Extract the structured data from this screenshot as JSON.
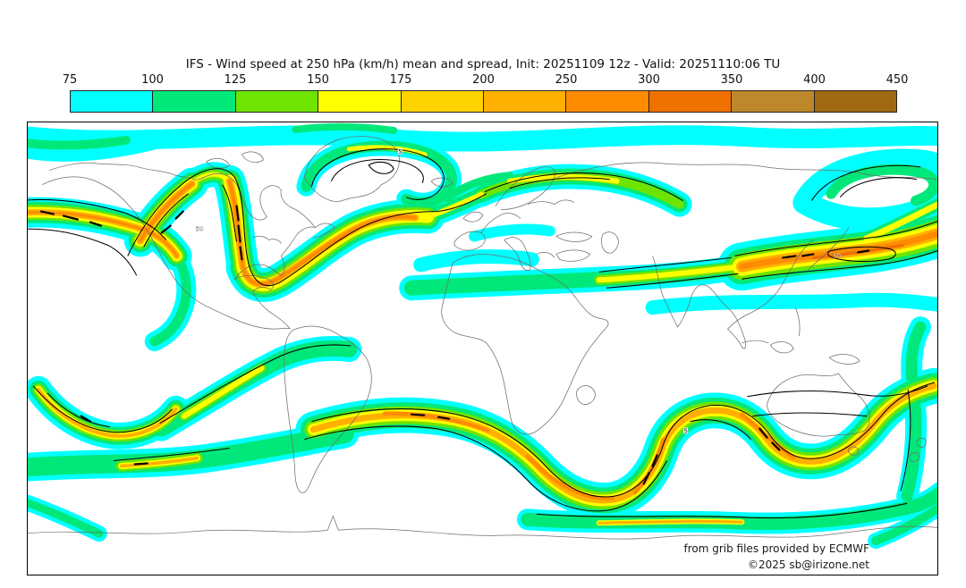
{
  "title": "IFS - Wind speed at 250 hPa (km/h) mean and spread, Init: 20251109 12z - Valid: 20251110:06 TU",
  "colorbar": {
    "tick_labels": [
      "75",
      "100",
      "125",
      "150",
      "175",
      "200",
      "250",
      "300",
      "350",
      "400",
      "450"
    ],
    "cell_colors": [
      "#00ffff",
      "#00e87a",
      "#6ee400",
      "#ffff00",
      "#ffd300",
      "#ffb000",
      "#ff8c00",
      "#f07000",
      "#bd882b",
      "#a06a12"
    ],
    "unit_context": "km/h"
  },
  "palette": {
    "cyan": "#00ffff",
    "spring_green": "#00e87a",
    "chartreuse": "#6ee400",
    "yellow": "#ffff00",
    "gold": "#ffd300",
    "amber": "#ffb000",
    "orange": "#ff8c00",
    "dark_orange": "#f07000",
    "olive_brown": "#bd882b",
    "brown": "#a06a12",
    "coastline_gray": "#6e6e6e",
    "spread_contour_black": "#000000"
  },
  "map": {
    "contour_labels": [
      "5",
      "5",
      "50",
      "50"
    ]
  },
  "footer": {
    "credit_line": "from grib files provided by ECMWF",
    "copyright_line": "©2025 sb@irizone.net"
  }
}
